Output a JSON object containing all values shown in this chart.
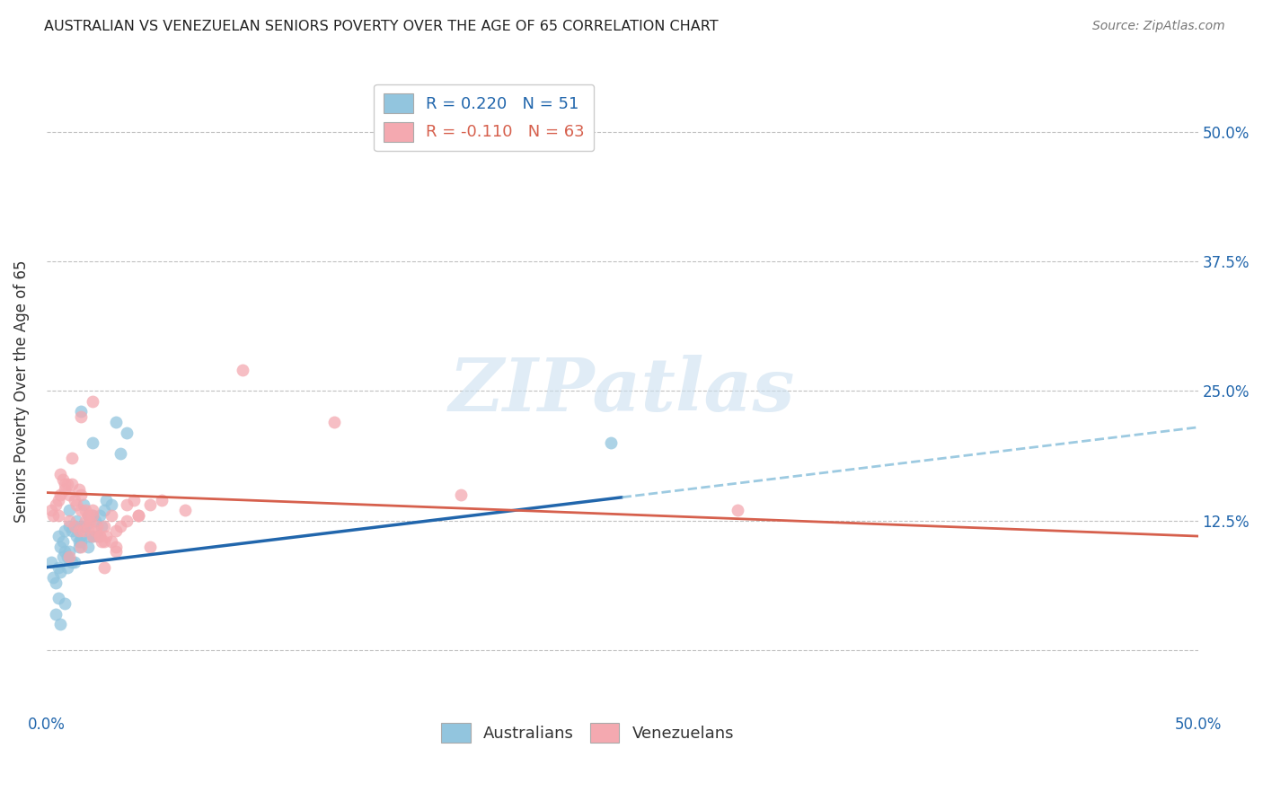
{
  "title": "AUSTRALIAN VS VENEZUELAN SENIORS POVERTY OVER THE AGE OF 65 CORRELATION CHART",
  "source": "Source: ZipAtlas.com",
  "ylabel": "Seniors Poverty Over the Age of 65",
  "xlim": [
    0.0,
    50.0
  ],
  "ylim": [
    -6.0,
    56.0
  ],
  "aus_color": "#92c5de",
  "ven_color": "#f4a9b0",
  "aus_line_color": "#2166ac",
  "ven_line_color": "#d6604d",
  "aus_dash_color": "#92c5de",
  "watermark_text": "ZIPatlas",
  "watermark_color": "#cce0f0",
  "aus_R": 0.22,
  "aus_N": 51,
  "ven_R": -0.11,
  "ven_N": 63,
  "aus_line_x0": 0.0,
  "aus_line_y0": 8.0,
  "aus_line_x1": 50.0,
  "aus_line_y1": 21.5,
  "aus_solid_x1": 25.0,
  "ven_line_x0": 0.0,
  "ven_line_y0": 15.2,
  "ven_line_x1": 50.0,
  "ven_line_y1": 11.0,
  "aus_scatter": [
    [
      0.2,
      8.5
    ],
    [
      0.3,
      7.0
    ],
    [
      0.4,
      6.5
    ],
    [
      0.5,
      8.0
    ],
    [
      0.5,
      11.0
    ],
    [
      0.6,
      7.5
    ],
    [
      0.6,
      10.0
    ],
    [
      0.7,
      9.0
    ],
    [
      0.7,
      10.5
    ],
    [
      0.8,
      4.5
    ],
    [
      0.8,
      9.5
    ],
    [
      0.8,
      11.5
    ],
    [
      0.9,
      8.0
    ],
    [
      0.9,
      9.0
    ],
    [
      1.0,
      9.5
    ],
    [
      1.0,
      12.0
    ],
    [
      1.0,
      13.5
    ],
    [
      1.1,
      8.5
    ],
    [
      1.1,
      11.5
    ],
    [
      1.2,
      8.5
    ],
    [
      1.2,
      12.0
    ],
    [
      1.3,
      11.0
    ],
    [
      1.3,
      12.5
    ],
    [
      1.4,
      10.0
    ],
    [
      1.4,
      10.5
    ],
    [
      1.5,
      10.5
    ],
    [
      1.5,
      11.0
    ],
    [
      1.6,
      12.0
    ],
    [
      1.6,
      14.0
    ],
    [
      1.7,
      12.0
    ],
    [
      1.8,
      10.0
    ],
    [
      1.8,
      13.0
    ],
    [
      1.9,
      11.0
    ],
    [
      2.0,
      11.0
    ],
    [
      2.0,
      13.0
    ],
    [
      2.1,
      12.5
    ],
    [
      2.2,
      11.0
    ],
    [
      2.3,
      13.0
    ],
    [
      2.4,
      12.0
    ],
    [
      2.5,
      13.5
    ],
    [
      2.6,
      14.5
    ],
    [
      2.8,
      14.0
    ],
    [
      3.0,
      22.0
    ],
    [
      3.2,
      19.0
    ],
    [
      3.5,
      21.0
    ],
    [
      1.5,
      23.0
    ],
    [
      2.0,
      20.0
    ],
    [
      0.5,
      5.0
    ],
    [
      0.4,
      3.5
    ],
    [
      0.6,
      2.5
    ],
    [
      24.5,
      20.0
    ]
  ],
  "ven_scatter": [
    [
      0.2,
      13.5
    ],
    [
      0.3,
      13.0
    ],
    [
      0.4,
      14.0
    ],
    [
      0.5,
      13.0
    ],
    [
      0.5,
      14.5
    ],
    [
      0.6,
      15.0
    ],
    [
      0.6,
      17.0
    ],
    [
      0.7,
      16.5
    ],
    [
      0.8,
      15.5
    ],
    [
      0.8,
      16.0
    ],
    [
      0.9,
      16.0
    ],
    [
      1.0,
      9.0
    ],
    [
      1.0,
      12.5
    ],
    [
      1.0,
      15.0
    ],
    [
      1.1,
      16.0
    ],
    [
      1.1,
      18.5
    ],
    [
      1.2,
      12.0
    ],
    [
      1.2,
      14.5
    ],
    [
      1.3,
      14.0
    ],
    [
      1.4,
      11.5
    ],
    [
      1.4,
      15.5
    ],
    [
      1.5,
      10.0
    ],
    [
      1.5,
      13.5
    ],
    [
      1.5,
      15.0
    ],
    [
      1.6,
      11.5
    ],
    [
      1.7,
      12.5
    ],
    [
      1.7,
      13.5
    ],
    [
      1.8,
      12.0
    ],
    [
      1.8,
      13.0
    ],
    [
      1.9,
      12.5
    ],
    [
      2.0,
      11.0
    ],
    [
      2.0,
      13.0
    ],
    [
      2.0,
      13.5
    ],
    [
      2.1,
      11.5
    ],
    [
      2.2,
      12.0
    ],
    [
      2.3,
      11.0
    ],
    [
      2.3,
      11.0
    ],
    [
      2.4,
      10.5
    ],
    [
      2.5,
      8.0
    ],
    [
      2.5,
      10.5
    ],
    [
      2.5,
      12.0
    ],
    [
      2.6,
      11.0
    ],
    [
      2.8,
      10.5
    ],
    [
      2.8,
      13.0
    ],
    [
      3.0,
      9.5
    ],
    [
      3.0,
      10.0
    ],
    [
      3.0,
      11.5
    ],
    [
      3.2,
      12.0
    ],
    [
      3.5,
      12.5
    ],
    [
      3.5,
      14.0
    ],
    [
      3.8,
      14.5
    ],
    [
      4.0,
      13.0
    ],
    [
      4.0,
      13.0
    ],
    [
      4.5,
      10.0
    ],
    [
      4.5,
      14.0
    ],
    [
      5.0,
      14.5
    ],
    [
      6.0,
      13.5
    ],
    [
      8.5,
      27.0
    ],
    [
      12.5,
      22.0
    ],
    [
      18.0,
      15.0
    ],
    [
      2.0,
      24.0
    ],
    [
      1.5,
      22.5
    ],
    [
      30.0,
      13.5
    ]
  ]
}
